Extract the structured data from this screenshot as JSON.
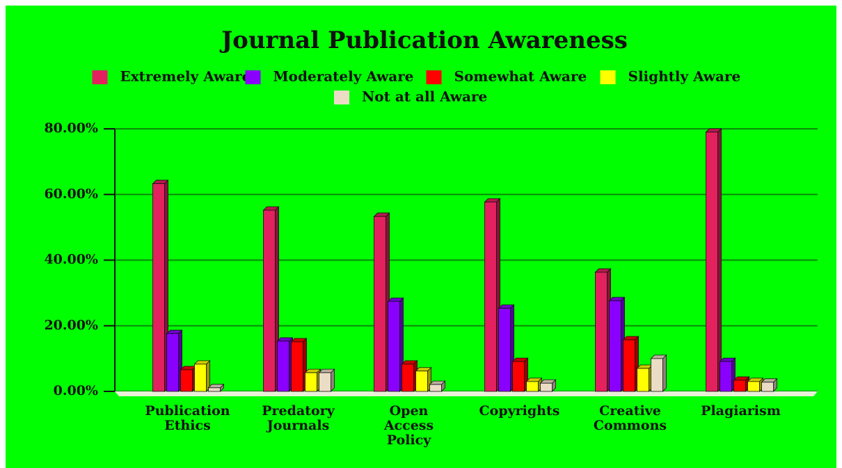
{
  "chart_data": {
    "type": "bar",
    "title": "Journal Publication Awareness",
    "categories": [
      "Publication Ethics",
      "Predatory Journals",
      "Open Access Policy",
      "Copyrights",
      "Creative Commons",
      "Plagiarism"
    ],
    "series": [
      {
        "name": "Extremely Aware",
        "color": "#e3215f",
        "values": [
          63.3,
          55.2,
          53.3,
          57.7,
          36.3,
          79.0
        ]
      },
      {
        "name": "Moderately Aware",
        "color": "#8a00ff",
        "values": [
          17.6,
          15.3,
          27.4,
          25.3,
          27.6,
          9.1
        ]
      },
      {
        "name": "Somewhat Aware",
        "color": "#ff0000",
        "values": [
          6.6,
          15.1,
          8.3,
          9.1,
          15.7,
          3.4
        ]
      },
      {
        "name": "Slightly Aware",
        "color": "#ffff00",
        "values": [
          8.3,
          5.7,
          6.2,
          3.0,
          7.0,
          3.0
        ]
      },
      {
        "name": "Not at all Aware",
        "color": "#ebdcc5",
        "values": [
          1.1,
          5.7,
          2.1,
          2.5,
          10.0,
          2.8
        ]
      }
    ],
    "ylim": [
      0,
      80
    ],
    "yticks": [
      {
        "value": 0,
        "label": "0.00%"
      },
      {
        "value": 20,
        "label": "20.00%"
      },
      {
        "value": 40,
        "label": "40.00%"
      },
      {
        "value": 60,
        "label": "60.00%"
      },
      {
        "value": 80,
        "label": "80.00%"
      }
    ],
    "grid": true
  }
}
